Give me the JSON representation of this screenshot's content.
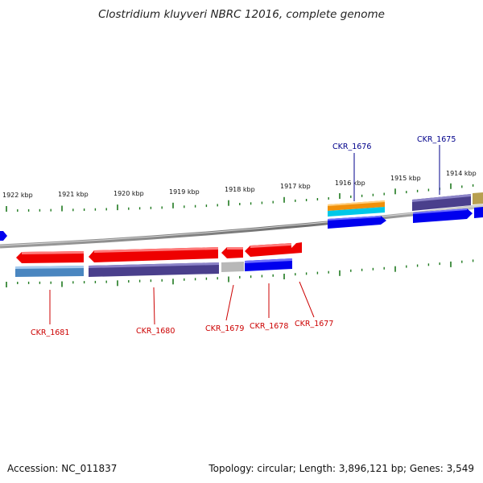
{
  "title": "Clostridium kluyveri NBRC 12016, complete genome",
  "footer": {
    "accession": "Accession: NC_011837",
    "summary": "Topology: circular; Length: 3,896,121 bp; Genes: 3,549"
  },
  "ruler": {
    "labels": [
      "1922 kbp",
      "1921 kbp",
      "1920 kbp",
      "1919 kbp",
      "1918 kbp",
      "1917 kbp",
      "1916 kbp",
      "1915 kbp",
      "1914 kbp"
    ]
  },
  "genes": [
    {
      "id": "CKR_1676",
      "color": "#00008b"
    },
    {
      "id": "CKR_1675",
      "color": "#00008b"
    },
    {
      "id": "CKR_1681",
      "color": "#cc0000"
    },
    {
      "id": "CKR_1680",
      "color": "#cc0000"
    },
    {
      "id": "CKR_1679",
      "color": "#cc0000"
    },
    {
      "id": "CKR_1678",
      "color": "#cc0000"
    },
    {
      "id": "CKR_1677",
      "color": "#cc0000"
    }
  ],
  "colors": {
    "backbone": "#8a8a8a",
    "tick": "#1f7a1f",
    "red_gene": "#ee0000",
    "blue_gene": "#0000ee",
    "purple_feature": "#4a3f8c",
    "steel_feature": "#4a86c0",
    "orange_feature": "#f0900a",
    "cyan_feature": "#00c8e8",
    "gray_feature": "#b8b8b8",
    "olive_feature": "#b8a050"
  }
}
